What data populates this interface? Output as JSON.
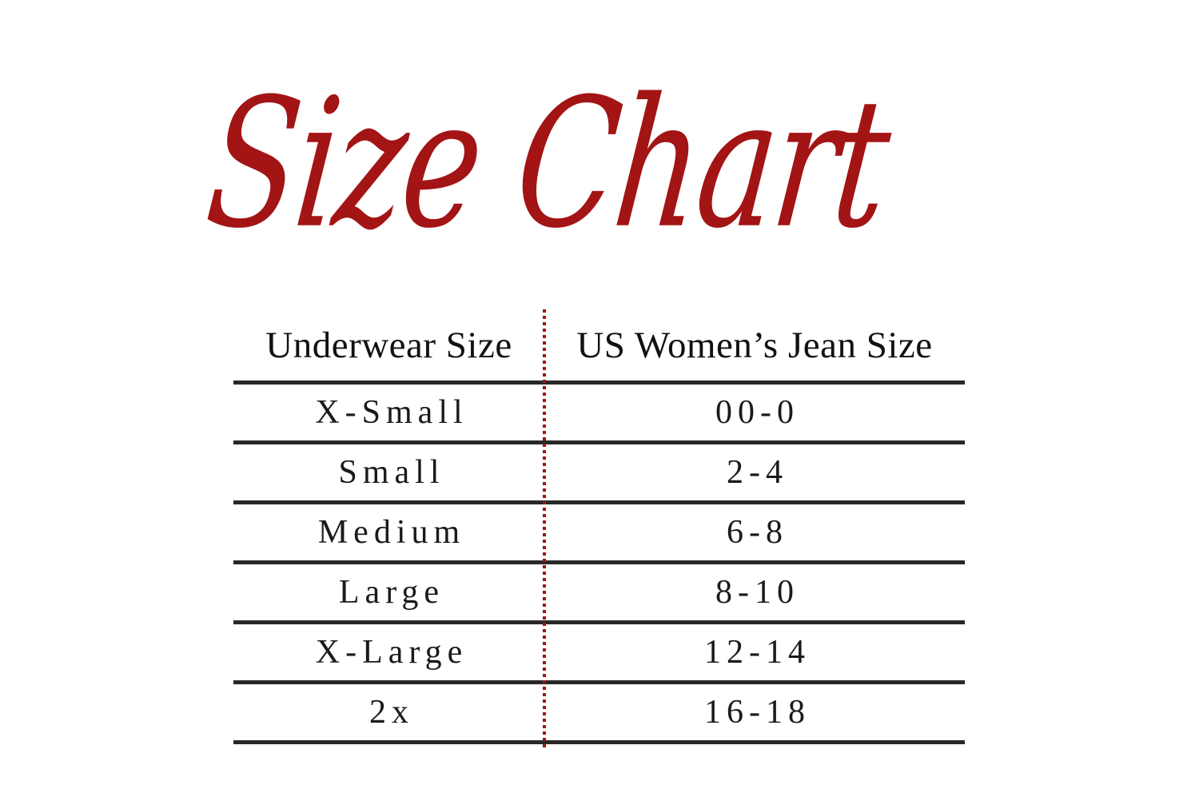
{
  "title": {
    "text": "Size Chart"
  },
  "colors": {
    "accent_red": "#A31414",
    "rule_dark": "#282828",
    "text_dark": "#1a1a1a",
    "background": "#ffffff"
  },
  "table": {
    "headers": [
      {
        "label": "Underwear Size"
      },
      {
        "label": "US Women’s Jean Size"
      }
    ],
    "rows": [
      {
        "underwear_size": "X-Small",
        "jean_size": "00-0"
      },
      {
        "underwear_size": "Small",
        "jean_size": "2-4"
      },
      {
        "underwear_size": "Medium",
        "jean_size": "6-8"
      },
      {
        "underwear_size": "Large",
        "jean_size": "8-10"
      },
      {
        "underwear_size": "X-Large",
        "jean_size": "12-14"
      },
      {
        "underwear_size": "2x",
        "jean_size": "16-18"
      }
    ]
  },
  "chart_data": {
    "type": "table",
    "title": "Size Chart",
    "columns": [
      "Underwear Size",
      "US Women’s Jean Size"
    ],
    "rows": [
      [
        "X-Small",
        "00-0"
      ],
      [
        "Small",
        "2-4"
      ],
      [
        "Medium",
        "6-8"
      ],
      [
        "Large",
        "8-10"
      ],
      [
        "X-Large",
        "12-14"
      ],
      [
        "2x",
        "16-18"
      ]
    ],
    "layout": {
      "column_divider": "dotted-red-vertical",
      "row_rules": "solid-dark-horizontal",
      "header_row": true
    }
  }
}
